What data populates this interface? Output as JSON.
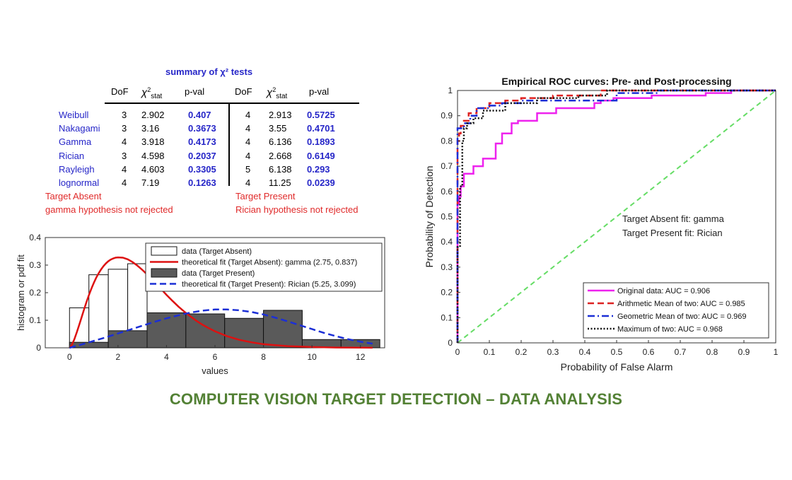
{
  "caption": "COMPUTER VISION TARGET DETECTION – DATA ANALYSIS",
  "chi_table": {
    "title": "summary of χ² tests",
    "headers": [
      "DoF",
      "χ²stat",
      "p-val",
      "DoF",
      "χ²stat",
      "p-val"
    ],
    "rows": [
      {
        "dist": "Weibull",
        "dof_a": "3",
        "chi_a": "2.902",
        "p_a": "0.407",
        "dof_p": "4",
        "chi_p": "2.913",
        "p_p": "0.5725"
      },
      {
        "dist": "Nakagami",
        "dof_a": "3",
        "chi_a": "3.16",
        "p_a": "0.3673",
        "dof_p": "4",
        "chi_p": "3.55",
        "p_p": "0.4701"
      },
      {
        "dist": "Gamma",
        "dof_a": "4",
        "chi_a": "3.918",
        "p_a": "0.4173",
        "dof_p": "4",
        "chi_p": "6.136",
        "p_p": "0.1893"
      },
      {
        "dist": "Rician",
        "dof_a": "3",
        "chi_a": "4.598",
        "p_a": "0.2037",
        "dof_p": "4",
        "chi_p": "2.668",
        "p_p": "0.6149"
      },
      {
        "dist": "Rayleigh",
        "dof_a": "4",
        "chi_a": "4.603",
        "p_a": "0.3305",
        "dof_p": "5",
        "chi_p": "6.138",
        "p_p": "0.293"
      },
      {
        "dist": "lognormal",
        "dof_a": "4",
        "chi_a": "7.19",
        "p_a": "0.1263",
        "dof_p": "4",
        "chi_p": "11.25",
        "p_p": "0.0239"
      }
    ],
    "absent_label": "Target Absent",
    "absent_result": "gamma hypothesis not rejected",
    "present_label": "Target Present",
    "present_result": "Rician hypothesis not rejected",
    "colors": {
      "dist": "#2626c8",
      "pval": "#2626c8",
      "result": "#e02a2a"
    }
  },
  "chart_data": [
    {
      "type": "bar",
      "xlabel": "values",
      "ylabel": "histogram or pdf fit",
      "xlim": [
        -1,
        13
      ],
      "ylim": [
        0,
        0.4
      ],
      "xticks": [
        0,
        2,
        4,
        6,
        8,
        10,
        12
      ],
      "yticks": [
        0,
        0.1,
        0.2,
        0.3,
        0.4
      ],
      "legend_position": "top-right",
      "absent_hist": {
        "name": "data (Target Absent)",
        "bin_edges": [
          0,
          0.8,
          1.6,
          2.4,
          3.2,
          4.0,
          4.8,
          5.6,
          6.4,
          7.2,
          8.0
        ],
        "values": [
          0.145,
          0.265,
          0.285,
          0.305,
          0.11,
          0.115,
          0.03,
          0.02,
          0.01,
          0.005
        ],
        "color": "#ffffff"
      },
      "present_hist": {
        "name": "data (Target Present)",
        "bin_edges": [
          0,
          1.6,
          3.2,
          4.8,
          6.4,
          8.0,
          9.6,
          11.2,
          12.8
        ],
        "values": [
          0.02,
          0.062,
          0.127,
          0.123,
          0.107,
          0.136,
          0.03,
          0.03
        ],
        "color": "#5a5a5a"
      },
      "series": [
        {
          "name": "theoretical fit (Target Absent): gamma (2.75, 0.837)",
          "color": "#dd1111",
          "style": "solid",
          "x": [
            0.0,
            0.1,
            0.2,
            0.3,
            0.4,
            0.5,
            0.6,
            0.7,
            0.8,
            0.9,
            1.0,
            1.1,
            1.2,
            1.3,
            1.4,
            1.5,
            1.6,
            1.7,
            1.8,
            1.9,
            2.0,
            2.2,
            2.4,
            2.6,
            2.8,
            3.0,
            3.2,
            3.4,
            3.6,
            3.8,
            4.0,
            4.25,
            4.5,
            4.75,
            5.0,
            5.25,
            5.5,
            5.75,
            6.0,
            6.5,
            7.0,
            7.5,
            8.0,
            9.0,
            10.0,
            11.0,
            12.0,
            12.5
          ],
          "y": [
            0,
            0.011,
            0.031,
            0.056,
            0.083,
            0.111,
            0.139,
            0.166,
            0.191,
            0.214,
            0.235,
            0.254,
            0.27,
            0.284,
            0.296,
            0.306,
            0.314,
            0.32,
            0.324,
            0.327,
            0.328,
            0.327,
            0.321,
            0.311,
            0.298,
            0.283,
            0.266,
            0.248,
            0.229,
            0.211,
            0.192,
            0.17,
            0.149,
            0.13,
            0.113,
            0.097,
            0.083,
            0.071,
            0.06,
            0.042,
            0.029,
            0.02,
            0.013,
            0.006,
            0.003,
            0.001,
            0.0005,
            0.0003
          ]
        },
        {
          "name": "theoretical fit (Target Present): Rician (5.25, 3.099)",
          "color": "#1c2fd6",
          "style": "dashed",
          "x": [
            0,
            0.5,
            1,
            1.5,
            2,
            2.5,
            3,
            3.5,
            4,
            4.5,
            5,
            5.5,
            6,
            6.5,
            7,
            7.5,
            8,
            8.5,
            9,
            9.5,
            10,
            10.5,
            11,
            11.5,
            12,
            12.5
          ],
          "y": [
            0,
            0.012,
            0.025,
            0.038,
            0.052,
            0.066,
            0.08,
            0.094,
            0.107,
            0.118,
            0.128,
            0.135,
            0.139,
            0.139,
            0.136,
            0.13,
            0.121,
            0.109,
            0.096,
            0.082,
            0.068,
            0.054,
            0.042,
            0.031,
            0.022,
            0.015
          ]
        }
      ]
    },
    {
      "type": "line",
      "title": "Empirical ROC curves: Pre- and Post-processing",
      "xlabel": "Probability of False Alarm",
      "ylabel": "Probability of Detection",
      "xlim": [
        0,
        1
      ],
      "ylim": [
        0,
        1
      ],
      "xticks": [
        0,
        0.1,
        0.2,
        0.3,
        0.4,
        0.5,
        0.6,
        0.7,
        0.8,
        0.9,
        1
      ],
      "yticks": [
        0,
        0.1,
        0.2,
        0.3,
        0.4,
        0.5,
        0.6,
        0.7,
        0.8,
        0.9,
        1
      ],
      "legend_position": "bottom-right",
      "annotations": [
        "Target Absent fit: gamma",
        "Target Present fit: Rician"
      ],
      "chance_line": {
        "x": [
          0,
          1
        ],
        "y": [
          0,
          1
        ],
        "color": "#66dd66",
        "style": "dashed"
      },
      "series": [
        {
          "name": "Original data: AUC = 0.906",
          "color": "#ee22ee",
          "style": "solid",
          "x": [
            0,
            0,
            0.005,
            0.005,
            0.01,
            0.01,
            0.02,
            0.02,
            0.05,
            0.05,
            0.08,
            0.08,
            0.12,
            0.12,
            0.14,
            0.14,
            0.17,
            0.17,
            0.19,
            0.19,
            0.25,
            0.25,
            0.31,
            0.31,
            0.43,
            0.43,
            0.45,
            0.45,
            0.49,
            0.49,
            0.61,
            0.61,
            0.78,
            0.78,
            0.86,
            0.86,
            1
          ],
          "y": [
            0,
            0.55,
            0.55,
            0.58,
            0.58,
            0.62,
            0.62,
            0.67,
            0.67,
            0.7,
            0.7,
            0.73,
            0.73,
            0.79,
            0.79,
            0.83,
            0.83,
            0.87,
            0.87,
            0.88,
            0.88,
            0.91,
            0.91,
            0.93,
            0.93,
            0.95,
            0.95,
            0.96,
            0.96,
            0.97,
            0.97,
            0.98,
            0.98,
            0.99,
            0.99,
            1,
            1
          ]
        },
        {
          "name": "Arithmetic Mean of two: AUC = 0.985",
          "color": "#dd2222",
          "style": "dashed",
          "x": [
            0,
            0,
            0.005,
            0.005,
            0.01,
            0.01,
            0.02,
            0.02,
            0.035,
            0.035,
            0.06,
            0.06,
            0.1,
            0.1,
            0.15,
            0.15,
            0.2,
            0.2,
            0.3,
            0.3,
            0.45,
            0.45,
            1
          ],
          "y": [
            0,
            0.8,
            0.8,
            0.83,
            0.83,
            0.86,
            0.86,
            0.88,
            0.88,
            0.91,
            0.91,
            0.93,
            0.93,
            0.95,
            0.95,
            0.96,
            0.96,
            0.97,
            0.97,
            0.98,
            0.98,
            1,
            1
          ]
        },
        {
          "name": "Geometric Mean of two: AUC = 0.969",
          "color": "#1c2fd6",
          "style": "dashdot",
          "x": [
            0,
            0,
            0.02,
            0.02,
            0.04,
            0.04,
            0.06,
            0.06,
            0.1,
            0.1,
            0.14,
            0.14,
            0.2,
            0.2,
            0.5,
            0.5,
            0.63,
            0.63,
            1
          ],
          "y": [
            0,
            0.85,
            0.85,
            0.87,
            0.87,
            0.9,
            0.9,
            0.93,
            0.93,
            0.94,
            0.94,
            0.95,
            0.95,
            0.96,
            0.96,
            0.99,
            0.99,
            1,
            1
          ]
        },
        {
          "name": "Maximum of two: AUC = 0.968",
          "color": "#111111",
          "style": "dotted",
          "x": [
            0,
            0,
            0.008,
            0.008,
            0.015,
            0.015,
            0.02,
            0.02,
            0.03,
            0.03,
            0.05,
            0.05,
            0.08,
            0.08,
            0.15,
            0.15,
            0.25,
            0.25,
            0.38,
            0.38,
            0.47,
            0.47,
            1
          ],
          "y": [
            0,
            0.38,
            0.38,
            0.62,
            0.62,
            0.8,
            0.8,
            0.85,
            0.85,
            0.87,
            0.87,
            0.89,
            0.89,
            0.92,
            0.92,
            0.95,
            0.95,
            0.97,
            0.97,
            0.98,
            0.98,
            1,
            1
          ]
        }
      ]
    }
  ]
}
